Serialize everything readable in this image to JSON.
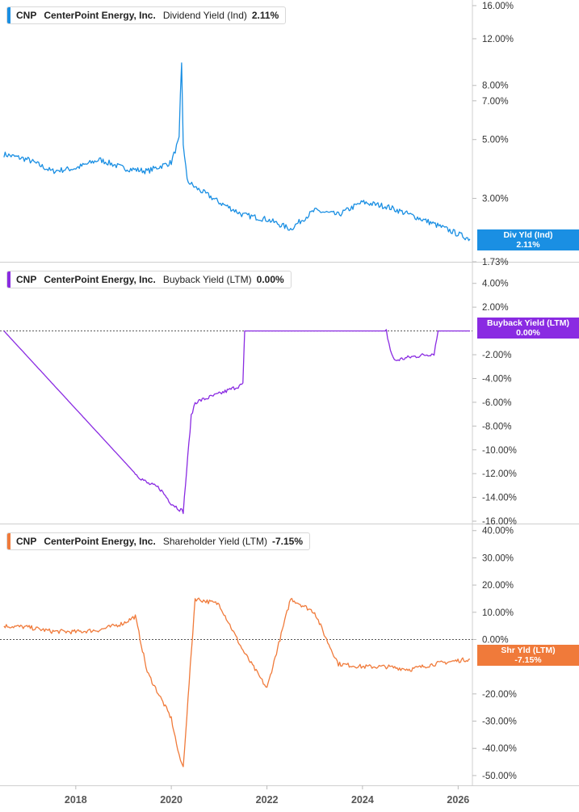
{
  "chart_data": [
    {
      "type": "line",
      "ticker": "CNP",
      "company": "CenterPoint Energy, Inc.",
      "metric": "Dividend Yield (Ind)",
      "value_label": "2.11%",
      "badge": [
        "Div Yld (Ind)",
        "2.11%"
      ],
      "color": "#1a8fe3",
      "yscale": "log",
      "ylim": [
        1.73,
        16.8
      ],
      "ytick_values": [
        16,
        12,
        8,
        7,
        5,
        3,
        1.73
      ],
      "ytick_labels": [
        "16.00%",
        "12.00%",
        "8.00%",
        "7.00%",
        "5.00%",
        "3.00%",
        "1.73%"
      ],
      "x": [
        "2016-07",
        "2017-01",
        "2017-07",
        "2018-01",
        "2018-07",
        "2019-01",
        "2019-07",
        "2020-01",
        "2020-03",
        "2020-03-20",
        "2020-04",
        "2020-05",
        "2020-07",
        "2021-01",
        "2021-07",
        "2022-01",
        "2022-07",
        "2023-01",
        "2023-07",
        "2024-01",
        "2024-07",
        "2025-01",
        "2025-07",
        "2026-01",
        "2026-04"
      ],
      "y": [
        4.4,
        4.2,
        3.8,
        3.9,
        4.2,
        3.9,
        3.8,
        4.1,
        5.0,
        9.6,
        4.8,
        3.5,
        3.3,
        2.9,
        2.6,
        2.5,
        2.3,
        2.7,
        2.6,
        2.9,
        2.8,
        2.6,
        2.4,
        2.2,
        2.11
      ]
    },
    {
      "type": "line",
      "ticker": "CNP",
      "company": "CenterPoint Energy, Inc.",
      "metric": "Buyback Yield (LTM)",
      "value_label": "0.00%",
      "badge": [
        "Buyback Yield (LTM)",
        "0.00%"
      ],
      "color": "#8a2be2",
      "ylim": [
        -16.2,
        5
      ],
      "zero_line": 0,
      "ytick_values": [
        4,
        2,
        -2,
        -4,
        -6,
        -8,
        -10,
        -12,
        -14,
        -16
      ],
      "ytick_labels": [
        "4.00%",
        "2.00%",
        "-2.00%",
        "-4.00%",
        "-6.00%",
        "-8.00%",
        "-10.00%",
        "-12.00%",
        "-14.00%",
        "-16.00%"
      ],
      "x": [
        "2016-07",
        "2019-04",
        "2019-07",
        "2019-10",
        "2020-01",
        "2020-04",
        "2020-06",
        "2020-07",
        "2021-01",
        "2021-04",
        "2021-07",
        "2021-07-15",
        "2024-07",
        "2024-08",
        "2024-09",
        "2025-01",
        "2025-07",
        "2025-08",
        "2026-04"
      ],
      "y": [
        0.0,
        -12.0,
        -12.8,
        -13.2,
        -14.5,
        -15.2,
        -7.2,
        -6.0,
        -5.3,
        -4.9,
        -4.5,
        0.0,
        0.0,
        -1.6,
        -2.5,
        -2.2,
        -1.9,
        0.0,
        0.0
      ]
    },
    {
      "type": "line",
      "ticker": "CNP",
      "company": "CenterPoint Energy, Inc.",
      "metric": "Shareholder Yield (LTM)",
      "value_label": "-7.15%",
      "badge": [
        "Shr Yld (LTM)",
        "-7.15%"
      ],
      "color": "#f07a3a",
      "ylim": [
        -53,
        42
      ],
      "zero_line": 0,
      "ytick_values": [
        40,
        30,
        20,
        10,
        0,
        -20,
        -30,
        -40,
        -50
      ],
      "ytick_labels": [
        "40.00%",
        "30.00%",
        "20.00%",
        "10.00%",
        "0.00%",
        "-20.00%",
        "-30.00%",
        "-40.00%",
        "-50.00%"
      ],
      "x": [
        "2016-07",
        "2017-01",
        "2017-07",
        "2018-01",
        "2018-07",
        "2019-01",
        "2019-04",
        "2019-07",
        "2020-01",
        "2020-03",
        "2020-04",
        "2020-07",
        "2021-01",
        "2021-07",
        "2022-01",
        "2022-07",
        "2023-01",
        "2023-04",
        "2023-07",
        "2024-01",
        "2024-07",
        "2025-01",
        "2025-07",
        "2026-04"
      ],
      "y": [
        5.0,
        4.5,
        3.0,
        2.8,
        3.5,
        6.0,
        8.5,
        -12.0,
        -29.0,
        -43.0,
        -47.0,
        15.0,
        13.0,
        -4.0,
        -18.0,
        15.0,
        10.0,
        0.0,
        -9.0,
        -10.0,
        -10.0,
        -11.0,
        -9.0,
        -7.15
      ]
    }
  ],
  "x_axis": {
    "tick_values": [
      "2018-01-01",
      "2020-01-01",
      "2022-01-01",
      "2024-01-01",
      "2026-01-01"
    ],
    "tick_labels": [
      "2018",
      "2020",
      "2022",
      "2024",
      "2026"
    ]
  }
}
